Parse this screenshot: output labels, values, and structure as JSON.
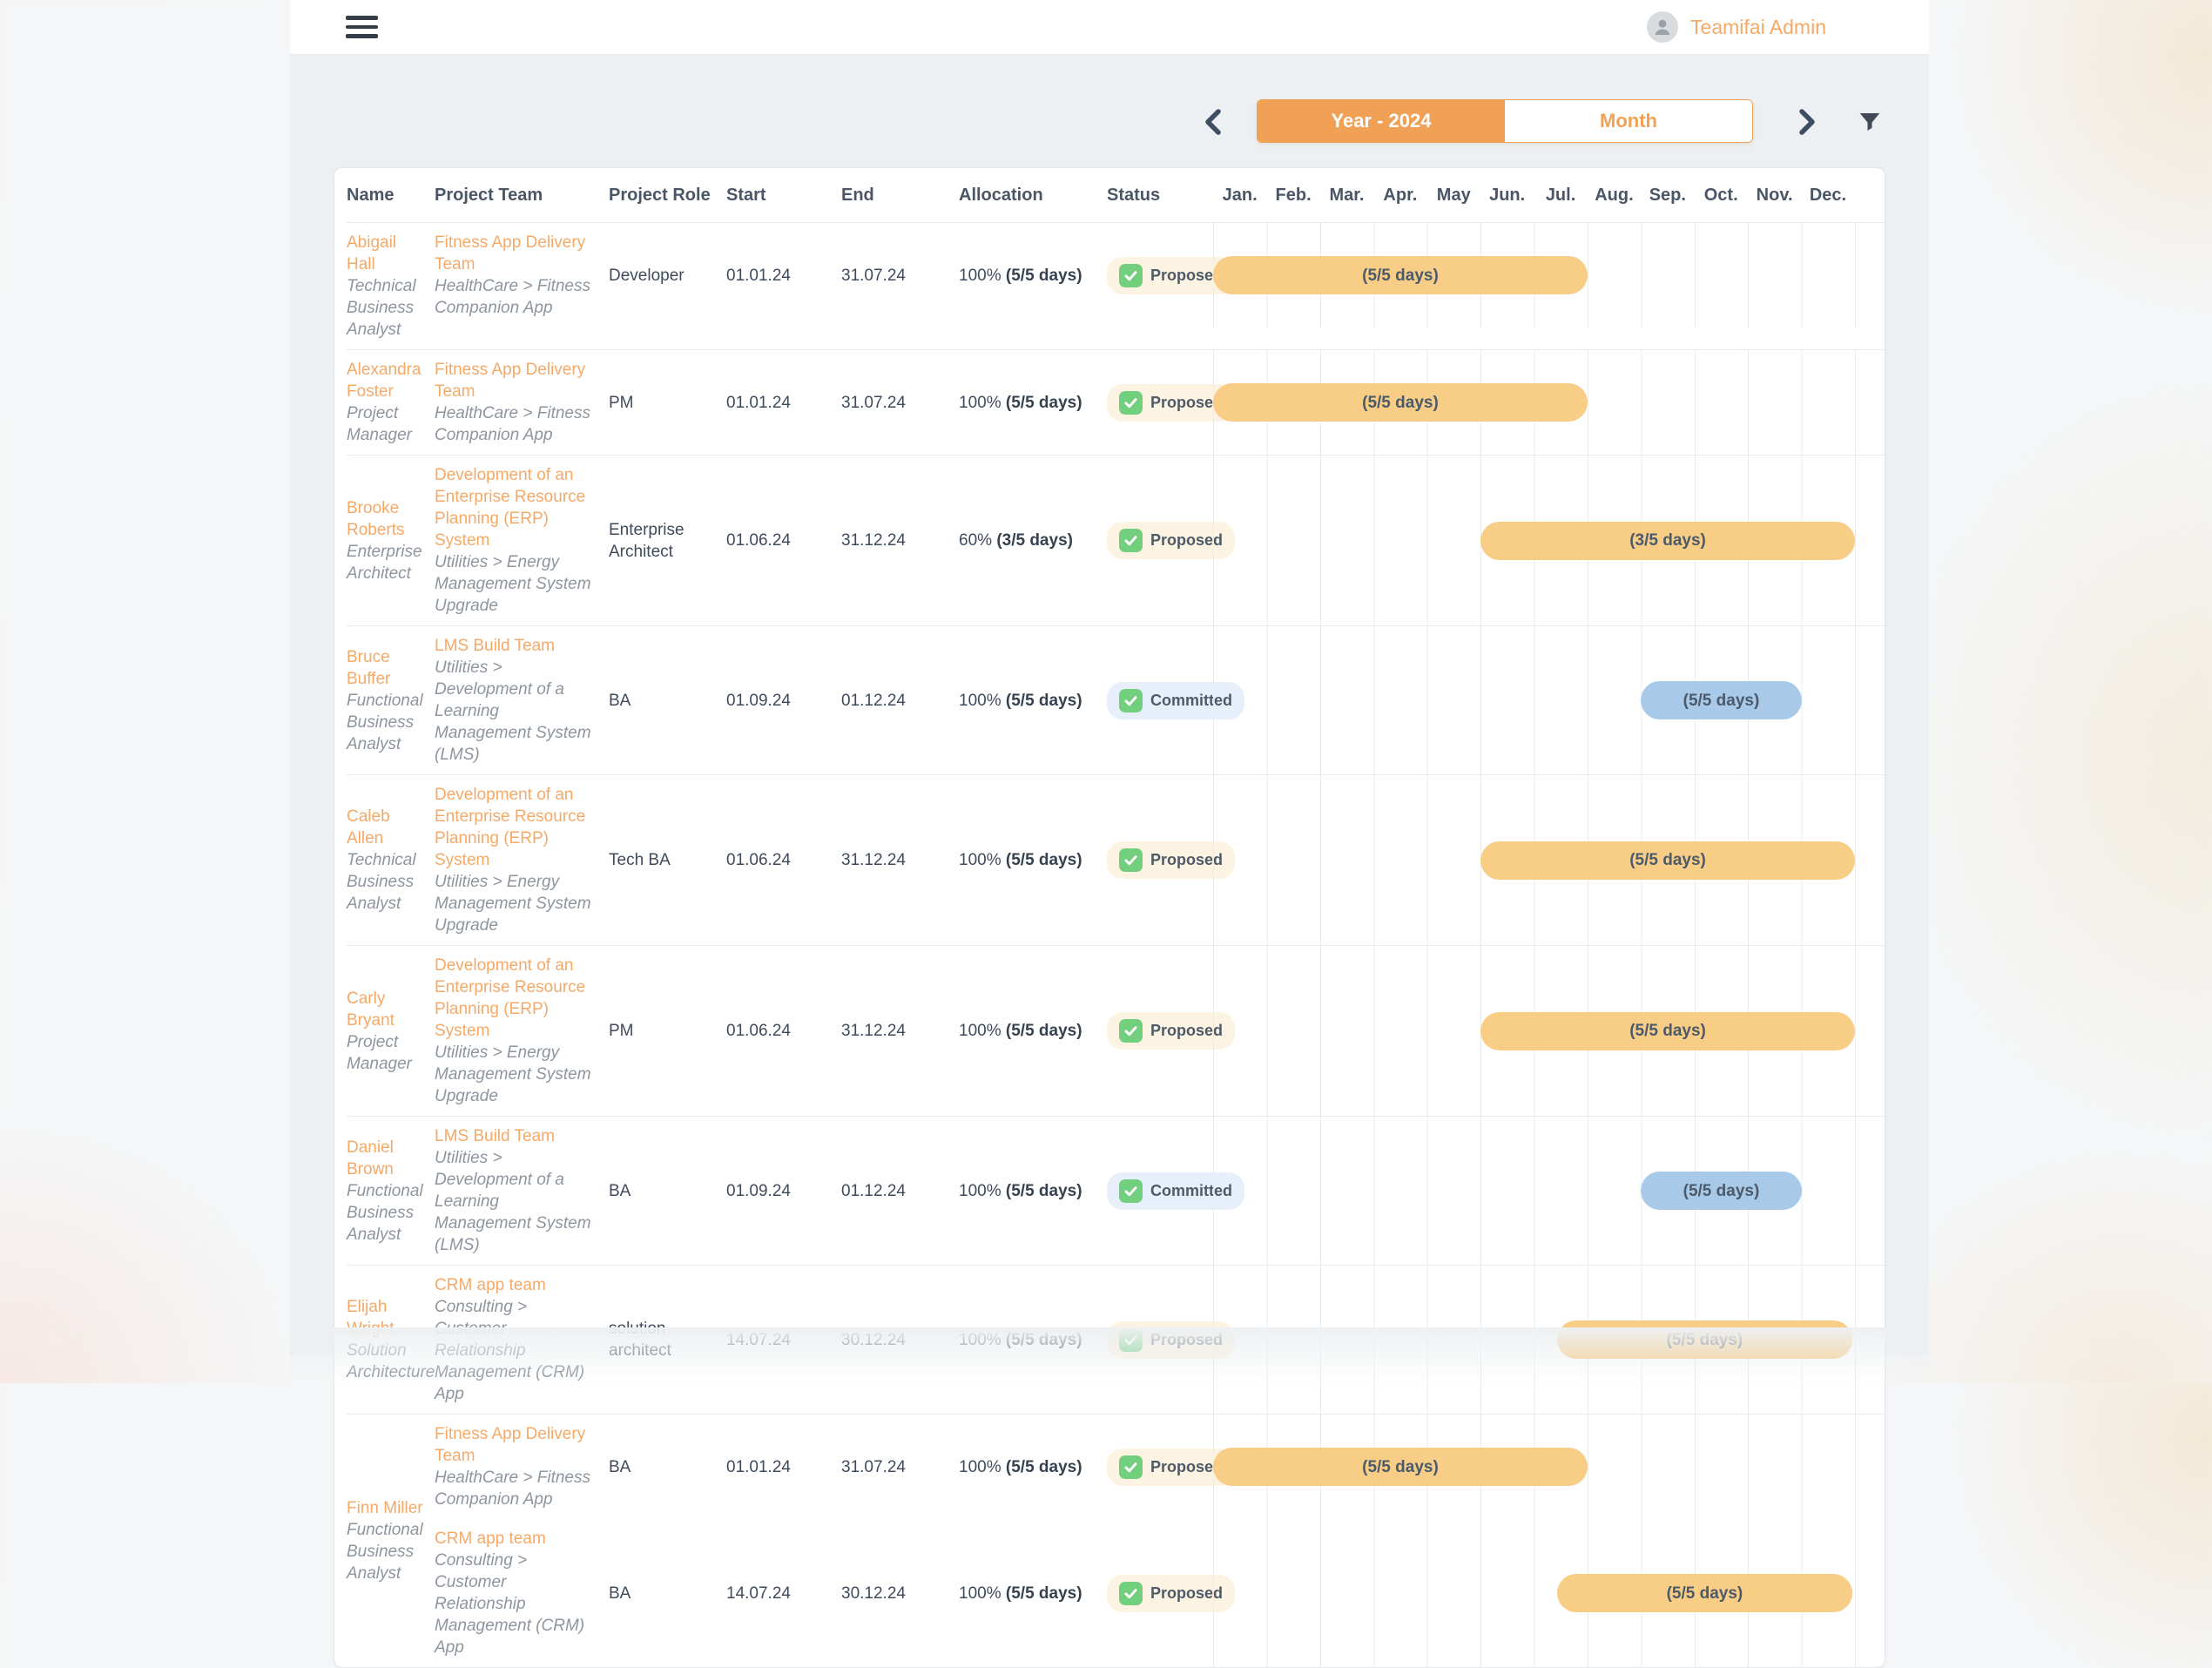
{
  "header": {
    "user_name": "Teamifai Admin"
  },
  "toolbar": {
    "year_toggle": "Year - 2024",
    "month_toggle": "Month"
  },
  "table": {
    "columns": {
      "name": "Name",
      "team": "Project Team",
      "role": "Project Role",
      "start": "Start",
      "end": "End",
      "allocation": "Allocation",
      "status": "Status"
    },
    "months": [
      "Jan.",
      "Feb.",
      "Mar.",
      "Apr.",
      "May",
      "Jun.",
      "Jul.",
      "Aug.",
      "Sep.",
      "Oct.",
      "Nov.",
      "Dec."
    ],
    "rows": [
      {
        "name": "Abigail Hall",
        "title": "Technical Business Analyst",
        "assignments": [
          {
            "team": "Fitness App Delivery Team",
            "path": "HealthCare >  Fitness Companion App",
            "role": "Developer",
            "start": "01.01.24",
            "end": "31.07.24",
            "allocation_pct": "100%",
            "allocation_days": "(5/5 days)",
            "status": "Proposed",
            "bar": {
              "from": 0,
              "to": 7,
              "label": "(5/5 days)",
              "color": "orange"
            }
          }
        ]
      },
      {
        "name": "Alexandra Foster",
        "title": "Project Manager",
        "assignments": [
          {
            "team": "Fitness App Delivery Team",
            "path": "HealthCare >  Fitness Companion App",
            "role": "PM",
            "start": "01.01.24",
            "end": "31.07.24",
            "allocation_pct": "100%",
            "allocation_days": "(5/5 days)",
            "status": "Proposed",
            "bar": {
              "from": 0,
              "to": 7,
              "label": "(5/5 days)",
              "color": "orange"
            }
          }
        ]
      },
      {
        "name": "Brooke Roberts",
        "title": "Enterprise Architect",
        "assignments": [
          {
            "team": "Development of an Enterprise Resource Planning (ERP) System",
            "path": "Utilities  >  Energy Management System Upgrade",
            "role": "Enterprise Architect",
            "start": "01.06.24",
            "end": "31.12.24",
            "allocation_pct": "60%",
            "allocation_days": "(3/5 days)",
            "status": "Proposed",
            "bar": {
              "from": 5,
              "to": 12,
              "label": "(3/5 days)",
              "color": "orange"
            }
          }
        ]
      },
      {
        "name": "Bruce Buffer",
        "title": "Functional Business Analyst",
        "assignments": [
          {
            "team": "LMS Build Team",
            "path": "Utilities  >  Development of a Learning Management System (LMS)",
            "role": "BA",
            "start": "01.09.24",
            "end": "01.12.24",
            "allocation_pct": "100%",
            "allocation_days": "(5/5 days)",
            "status": "Committed",
            "bar": {
              "from": 8,
              "to": 11,
              "label": "(5/5 days)",
              "color": "blue"
            }
          }
        ]
      },
      {
        "name": "Caleb Allen",
        "title": "Technical Business Analyst",
        "assignments": [
          {
            "team": "Development of an Enterprise Resource Planning (ERP) System",
            "path": "Utilities  >  Energy Management System Upgrade",
            "role": "Tech BA",
            "start": "01.06.24",
            "end": "31.12.24",
            "allocation_pct": "100%",
            "allocation_days": "(5/5 days)",
            "status": "Proposed",
            "bar": {
              "from": 5,
              "to": 12,
              "label": "(5/5 days)",
              "color": "orange"
            }
          }
        ]
      },
      {
        "name": "Carly Bryant",
        "title": "Project Manager",
        "assignments": [
          {
            "team": "Development of an Enterprise Resource Planning (ERP) System",
            "path": "Utilities  >  Energy Management System Upgrade",
            "role": "PM",
            "start": "01.06.24",
            "end": "31.12.24",
            "allocation_pct": "100%",
            "allocation_days": "(5/5 days)",
            "status": "Proposed",
            "bar": {
              "from": 5,
              "to": 12,
              "label": "(5/5 days)",
              "color": "orange"
            }
          }
        ]
      },
      {
        "name": "Daniel Brown",
        "title": "Functional Business Analyst",
        "assignments": [
          {
            "team": "LMS Build Team",
            "path": "Utilities  >  Development of a Learning Management System (LMS)",
            "role": "BA",
            "start": "01.09.24",
            "end": "01.12.24",
            "allocation_pct": "100%",
            "allocation_days": "(5/5 days)",
            "status": "Committed",
            "bar": {
              "from": 8,
              "to": 11,
              "label": "(5/5 days)",
              "color": "blue"
            }
          }
        ]
      },
      {
        "name": "Elijah Wright",
        "title": "Solution Architecture",
        "assignments": [
          {
            "team": "CRM app team",
            "path": "Consulting >  Customer Relationship Management (CRM) App",
            "role": "solution architect",
            "start": "14.07.24",
            "end": "30.12.24",
            "allocation_pct": "100%",
            "allocation_days": "(5/5 days)",
            "status": "Proposed",
            "bar": {
              "from": 6.43,
              "to": 11.95,
              "label": "(5/5 days)",
              "color": "orange"
            }
          }
        ]
      },
      {
        "name": "Finn Miller",
        "title": "Functional Business Analyst",
        "assignments": [
          {
            "team": "Fitness App Delivery Team",
            "path": "HealthCare >  Fitness Companion App",
            "role": "BA",
            "start": "01.01.24",
            "end": "31.07.24",
            "allocation_pct": "100%",
            "allocation_days": "(5/5 days)",
            "status": "Proposed",
            "bar": {
              "from": 0,
              "to": 7,
              "label": "(5/5 days)",
              "color": "orange"
            }
          },
          {
            "team": "CRM app team",
            "path": "Consulting >  Customer Relationship Management (CRM) App",
            "role": "BA",
            "start": "14.07.24",
            "end": "30.12.24",
            "allocation_pct": "100%",
            "allocation_days": "(5/5 days)",
            "status": "Proposed",
            "bar": {
              "from": 6.43,
              "to": 11.95,
              "label": "(5/5 days)",
              "color": "orange"
            }
          }
        ]
      }
    ]
  },
  "colors": {
    "accent_orange": "#f0a155",
    "link_orange": "#f5a967",
    "bar_orange": "#f8cd86",
    "bar_blue": "#a9c9e9",
    "badge_proposed_bg": "#fdf3e2",
    "badge_committed_bg": "#e7f0fa",
    "check_green": "#72cf7e",
    "text_dark": "#425062",
    "text_muted": "#8d959e"
  }
}
